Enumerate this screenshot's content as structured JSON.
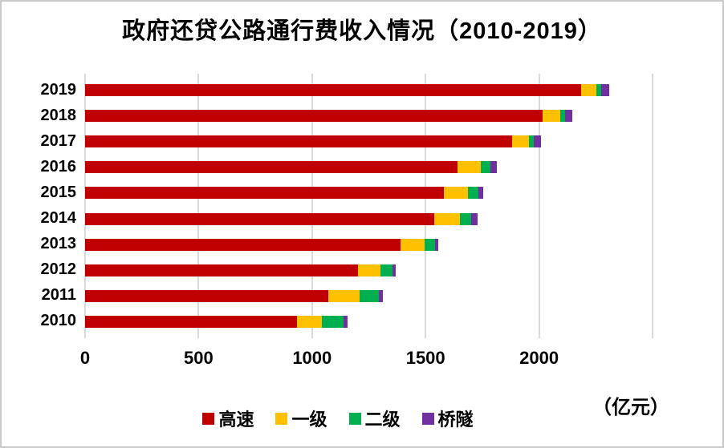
{
  "title": "政府还贷公路通行费收入情况（2010-2019）",
  "unit_label": "（亿元）",
  "colors": {
    "highway_red": "#C00000",
    "first_class_yellow": "#FFC000",
    "second_class_green": "#00B050",
    "bridge_tunnel_purple": "#7030A0",
    "gridline_gray": "#D9D9D9",
    "text_black": "#000000",
    "background": "#FFFFFF"
  },
  "chart_data": {
    "type": "bar",
    "orientation": "horizontal",
    "stacked": true,
    "title": "政府还贷公路通行费收入情况（2010-2019）",
    "xlabel": "（亿元）",
    "ylabel": "",
    "grid": true,
    "legend_position": "bottom",
    "xlim": [
      0,
      2780
    ],
    "x_ticks": [
      0,
      500,
      1000,
      1500,
      2000
    ],
    "gridline_values": [
      0,
      500,
      1000,
      1500,
      2000,
      2500
    ],
    "categories": [
      "2019",
      "2018",
      "2017",
      "2016",
      "2015",
      "2014",
      "2013",
      "2012",
      "2011",
      "2010"
    ],
    "series": [
      {
        "name": "高速",
        "color": "#C00000",
        "values": [
          2187,
          2016,
          1880,
          1642,
          1579,
          1538,
          1388,
          1203,
          1070,
          934
        ]
      },
      {
        "name": "一级",
        "color": "#FFC000",
        "values": [
          67,
          79,
          76,
          103,
          109,
          115,
          109,
          100,
          141,
          109
        ]
      },
      {
        "name": "二级",
        "color": "#00B050",
        "values": [
          20,
          19,
          21,
          41,
          44,
          47,
          46,
          53,
          85,
          95
        ]
      },
      {
        "name": "桥隧",
        "color": "#7030A0",
        "values": [
          35,
          34,
          33,
          27,
          21,
          29,
          13,
          12,
          15,
          18
        ]
      }
    ],
    "totals": [
      2309,
      2148,
      2010,
      1813,
      1753,
      1729,
      1556,
      1368,
      1311,
      1156
    ]
  }
}
